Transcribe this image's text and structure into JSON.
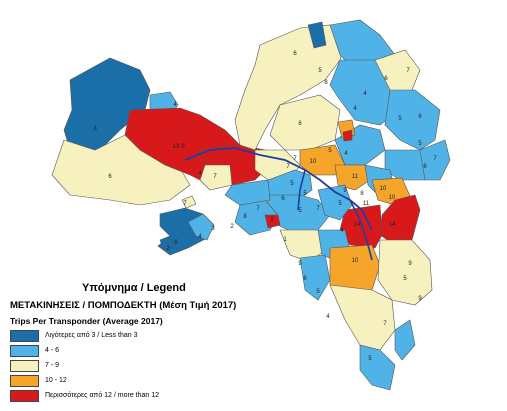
{
  "legend": {
    "title": "Υπόμνημα / Legend",
    "subtitle": "ΜΕΤΑΚΙΝΗΣΕΙΣ / ΠΟΜΠΟΔΕΚΤΗ (Μέση Τιμή 2017)",
    "subtitle_en": "Trips Per Transponder (Average 2017)",
    "items": [
      {
        "label": "Λιγότερες από 3 / Less than 3",
        "color": "#1a6fa8"
      },
      {
        "label": "4 - 6",
        "color": "#4fb3e8"
      },
      {
        "label": "7 - 9",
        "color": "#f7f1c0"
      },
      {
        "label": "10 - 12",
        "color": "#f5a52a"
      },
      {
        "label": "Περισσότερες από 12 / more than 12",
        "color": "#d7191c"
      }
    ]
  },
  "map": {
    "motorway_color": "#1f3f9e",
    "region_values": [
      "3",
      "4",
      "6",
      "8",
      "13",
      "4",
      "7",
      "7",
      "6",
      "2",
      "4",
      "3",
      "6",
      "8",
      "5",
      "6",
      "7",
      "6",
      "7",
      "4",
      "4",
      "5",
      "6",
      "5",
      "4",
      "7",
      "10",
      "5",
      "5",
      "6",
      "7",
      "5",
      "11",
      "9",
      "10",
      "8",
      "11",
      "5",
      "10",
      "14",
      "14",
      "10",
      "9",
      "5",
      "6",
      "5",
      "7",
      "4",
      "9",
      "6",
      "5",
      "4",
      "5",
      "2",
      "1",
      "2",
      "8",
      "7",
      "9",
      "7"
    ]
  }
}
